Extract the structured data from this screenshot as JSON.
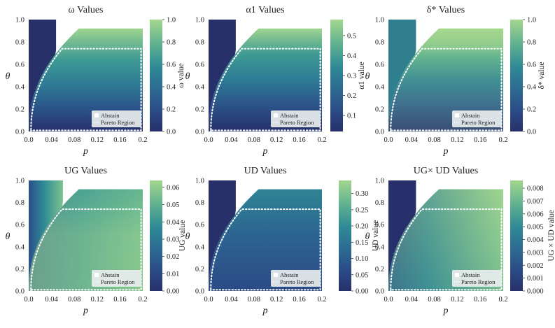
{
  "figure": {
    "legend": {
      "abstain_label": "Abstain",
      "pareto_label": "Pareto Region"
    },
    "colors": {
      "low": "#2b3a74",
      "mid": "#2e7e93",
      "high": "#9fd48f",
      "abstain": "#28306a",
      "pareto": "#ffffff"
    }
  },
  "chart_data": [
    {
      "type": "heatmap",
      "title": "ω Values",
      "xlabel": "p",
      "ylabel": "θ",
      "cbar_label": "ω value",
      "xticks": [
        "0.0",
        "0.04",
        "0.08",
        "0.12",
        "0.16",
        "0.2"
      ],
      "yticks": [
        "0.0",
        "0.2",
        "0.4",
        "0.6",
        "0.8",
        "1.0"
      ],
      "cbar_ticks": [
        "0.0",
        "0.2",
        "0.4",
        "0.6",
        "0.8",
        "1.0"
      ],
      "xlim": [
        0,
        0.2
      ],
      "ylim": [
        0,
        1.0
      ],
      "cbar_range": [
        0,
        1.0
      ],
      "abstain_region": {
        "p_max": 0.048,
        "theta_min": 0
      },
      "defined_theta_max": 0.92,
      "pareto_theta": 0.74
    },
    {
      "type": "heatmap",
      "title": "α1 Values",
      "xlabel": "p",
      "ylabel": "θ",
      "cbar_label": "α1 value",
      "xticks": [
        "0.0",
        "0.04",
        "0.08",
        "0.12",
        "0.16",
        "0.2"
      ],
      "yticks": [
        "0.0",
        "0.2",
        "0.4",
        "0.6",
        "0.8",
        "1.0"
      ],
      "cbar_ticks": [
        "0.1",
        "0.2",
        "0.3",
        "0.4",
        "0.5"
      ],
      "xlim": [
        0,
        0.2
      ],
      "ylim": [
        0,
        1.0
      ],
      "cbar_range": [
        0.02,
        0.58
      ],
      "abstain_region": {
        "p_max": 0.048,
        "theta_min": 0
      },
      "defined_theta_max": 0.92,
      "pareto_theta": 0.74
    },
    {
      "type": "heatmap",
      "title": "δ* Values",
      "xlabel": "p",
      "ylabel": "θ",
      "cbar_label": "δ* value",
      "xticks": [
        "0.0",
        "0.04",
        "0.08",
        "0.12",
        "0.16",
        "0.2"
      ],
      "yticks": [
        "0.0",
        "0.2",
        "0.4",
        "0.6",
        "0.8",
        "1.0"
      ],
      "cbar_ticks": [
        "0.0",
        "0.2",
        "0.4",
        "0.6",
        "0.8",
        "1.0"
      ],
      "xlim": [
        0,
        0.2
      ],
      "ylim": [
        0,
        1.0
      ],
      "cbar_range": [
        0,
        1.0
      ],
      "abstain_region": {
        "p_max": 0.048,
        "theta_min": 0
      },
      "defined_theta_max": 0.92,
      "pareto_theta": 0.74
    },
    {
      "type": "heatmap",
      "title": "UG Values",
      "xlabel": "p",
      "ylabel": "θ",
      "cbar_label": "UG value",
      "xticks": [
        "0.0",
        "0.04",
        "0.08",
        "0.12",
        "0.16",
        "0.2"
      ],
      "yticks": [
        "0.0",
        "0.2",
        "0.4",
        "0.6",
        "0.8",
        "1.0"
      ],
      "cbar_ticks": [
        "0.00",
        "0.01",
        "0.02",
        "0.03",
        "0.04",
        "0.05",
        "0.06"
      ],
      "xlim": [
        0,
        0.2
      ],
      "ylim": [
        0,
        1.0
      ],
      "cbar_range": [
        0,
        0.064
      ],
      "abstain_region": {
        "p_max": 0.06,
        "theta_min": 0
      },
      "defined_theta_max": 0.92,
      "pareto_theta": 0.74
    },
    {
      "type": "heatmap",
      "title": "UD Values",
      "xlabel": "p",
      "ylabel": "θ",
      "cbar_label": "UD value",
      "xticks": [
        "0.0",
        "0.04",
        "0.08",
        "0.12",
        "0.16",
        "0.2"
      ],
      "yticks": [
        "0.0",
        "0.2",
        "0.4",
        "0.6",
        "0.8",
        "1.0"
      ],
      "cbar_ticks": [
        "0.00",
        "0.05",
        "0.10",
        "0.15",
        "0.20",
        "0.25",
        "0.30"
      ],
      "xlim": [
        0,
        0.2
      ],
      "ylim": [
        0,
        1.0
      ],
      "cbar_range": [
        0,
        0.34
      ],
      "abstain_region": {
        "p_max": 0.048,
        "theta_min": 0
      },
      "defined_theta_max": 0.92,
      "pareto_theta": 0.74
    },
    {
      "type": "heatmap",
      "title": "UG× UD Values",
      "xlabel": "p",
      "ylabel": "θ",
      "cbar_label": "UG × UD value",
      "xticks": [
        "0.0",
        "0.04",
        "0.08",
        "0.12",
        "0.16",
        "0.2"
      ],
      "yticks": [
        "0.0",
        "0.2",
        "0.4",
        "0.6",
        "0.8",
        "1.0"
      ],
      "cbar_ticks": [
        "0.000",
        "0.001",
        "0.002",
        "0.003",
        "0.004",
        "0.005",
        "0.006",
        "0.007",
        "0.008"
      ],
      "xlim": [
        0,
        0.2
      ],
      "ylim": [
        0,
        1.0
      ],
      "cbar_range": [
        0,
        0.0086
      ],
      "abstain_region": {
        "p_max": 0.048,
        "theta_min": 0
      },
      "defined_theta_max": 0.92,
      "pareto_theta": 0.74
    }
  ]
}
